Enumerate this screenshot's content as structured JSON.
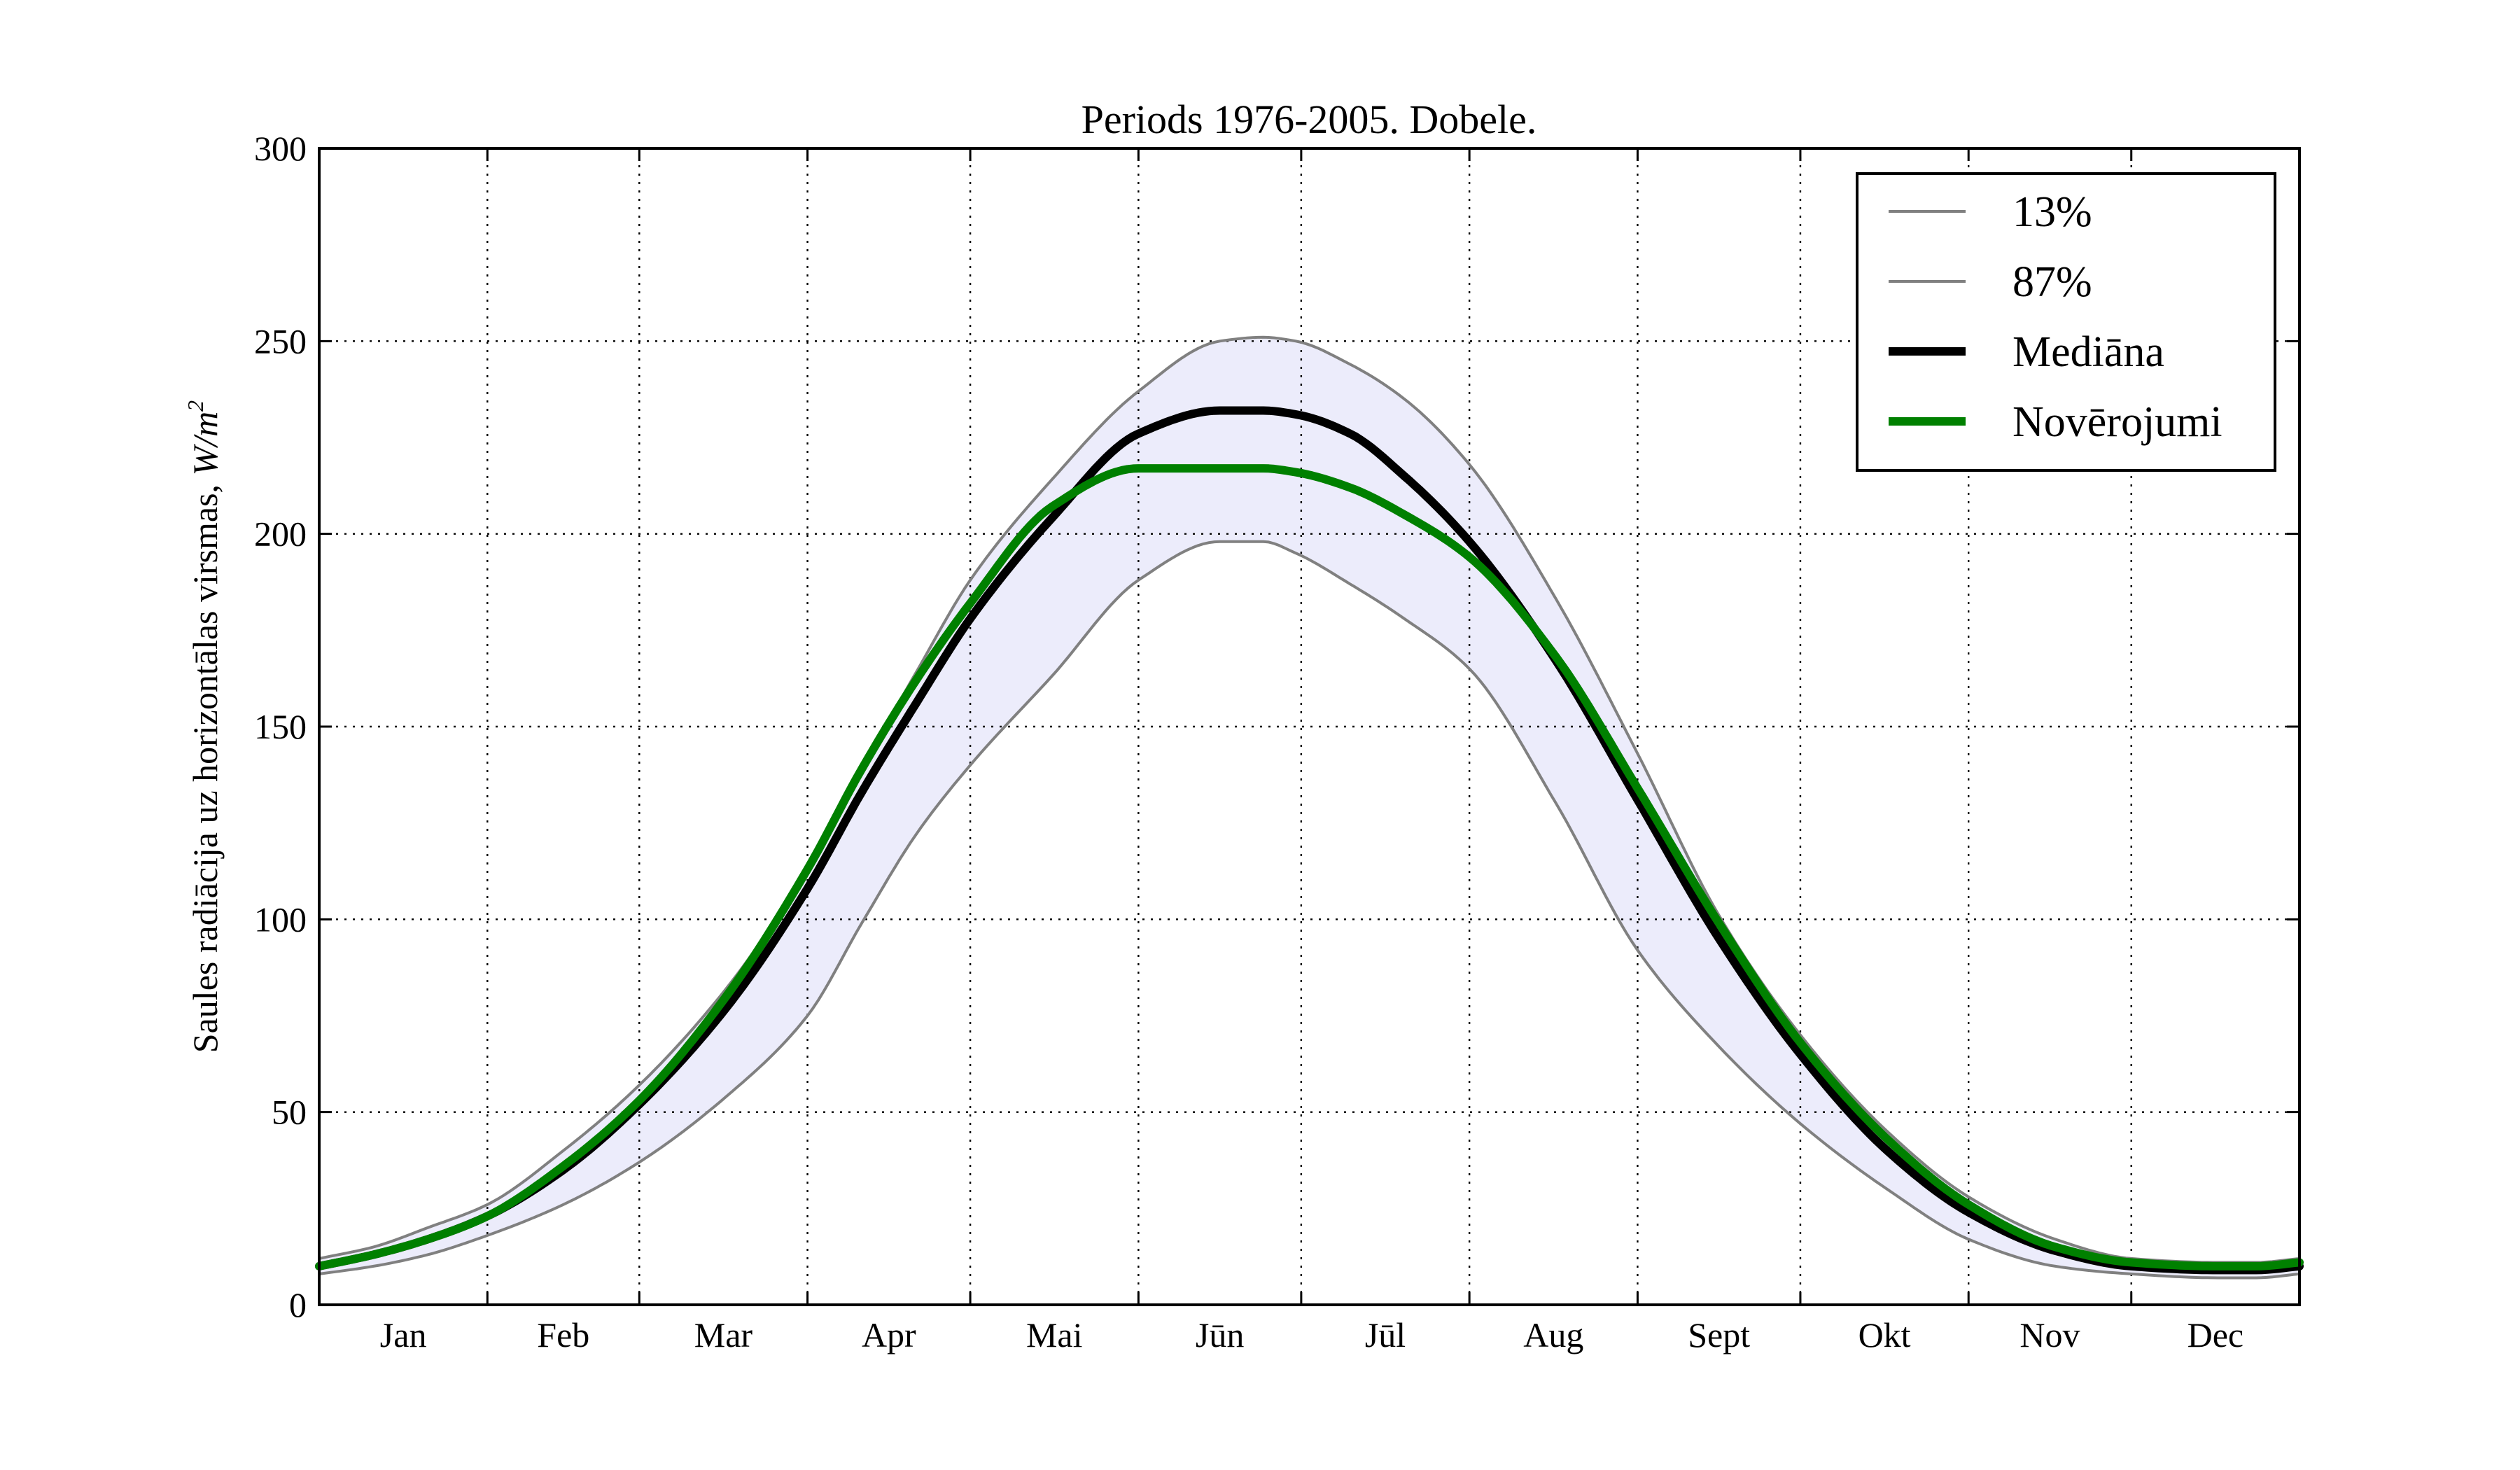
{
  "chart_data": {
    "type": "line",
    "title": "Periods 1976-2005. Dobele.",
    "xlabel": "",
    "ylabel": "Saules radiācija uz horizontālas virsmas, W/m²",
    "ylabel_prefix": "Saules radiācija uz horizontālas virsmas, ",
    "ylabel_unit_main": "W/m",
    "ylabel_unit_sup": "2",
    "ylim": [
      0,
      300
    ],
    "yticks": [
      "0",
      "50",
      "100",
      "150",
      "200",
      "250",
      "300"
    ],
    "ytick_values": [
      0,
      50,
      100,
      150,
      200,
      250,
      300
    ],
    "xlim": [
      0,
      365
    ],
    "month_boundaries": [
      31,
      59,
      90,
      120,
      151,
      181,
      212,
      243,
      273,
      304,
      334
    ],
    "categories": [
      "Jan",
      "Feb",
      "Mar",
      "Apr",
      "Mai",
      "Jūn",
      "Jūl",
      "Aug",
      "Sept",
      "Okt",
      "Nov",
      "Dec"
    ],
    "grid": true,
    "legend_position": "top-right",
    "band_color": "#ececfb",
    "series": [
      {
        "name": "13%",
        "color": "#808080",
        "style": "thin",
        "x": [
          0,
          10,
          20,
          31,
          45,
          59,
          75,
          90,
          100,
          110,
          120,
          135,
          151,
          166,
          174,
          180,
          190,
          200,
          212,
          228,
          243,
          258,
          273,
          289,
          304,
          320,
          334,
          350,
          357,
          365
        ],
        "values": [
          8,
          10,
          13,
          18,
          26,
          37,
          54,
          75,
          99,
          122,
          140,
          163,
          188,
          198,
          198,
          195,
          187,
          178,
          165,
          130,
          92,
          67,
          47,
          30,
          17,
          10,
          8,
          7,
          7,
          8
        ]
      },
      {
        "name": "87%",
        "color": "#808080",
        "style": "thin",
        "x": [
          0,
          10,
          20,
          31,
          45,
          59,
          75,
          90,
          100,
          110,
          120,
          135,
          151,
          166,
          174,
          180,
          190,
          200,
          212,
          228,
          243,
          258,
          273,
          289,
          304,
          320,
          334,
          350,
          357,
          365
        ],
        "values": [
          12,
          15,
          20,
          26,
          40,
          57,
          82,
          113,
          139,
          164,
          188,
          214,
          237,
          250,
          251,
          250,
          244,
          235,
          218,
          183,
          143,
          101,
          70,
          45,
          28,
          17,
          12,
          11,
          11,
          12
        ]
      },
      {
        "name": "Mediāna",
        "color": "#000000",
        "style": "thick",
        "x": [
          0,
          10,
          20,
          31,
          45,
          59,
          75,
          90,
          100,
          110,
          120,
          135,
          151,
          166,
          174,
          180,
          190,
          200,
          212,
          228,
          243,
          258,
          273,
          289,
          304,
          320,
          334,
          350,
          357,
          365
        ],
        "values": [
          10,
          13,
          17,
          23,
          35,
          52,
          77,
          108,
          133,
          156,
          178,
          204,
          226,
          232,
          232,
          231,
          226,
          215,
          198,
          167,
          131,
          95,
          65,
          40,
          24,
          14,
          10,
          9,
          9,
          10
        ]
      },
      {
        "name": "Novērojumi",
        "color": "#008000",
        "style": "thick",
        "x": [
          0,
          10,
          20,
          31,
          45,
          59,
          75,
          90,
          100,
          110,
          120,
          135,
          151,
          166,
          174,
          180,
          190,
          200,
          212,
          228,
          243,
          258,
          273,
          289,
          304,
          320,
          334,
          350,
          357,
          365
        ],
        "values": [
          10,
          13,
          17,
          23,
          36,
          53,
          80,
          113,
          139,
          162,
          182,
          207,
          217,
          217,
          217,
          216,
          212,
          205,
          194,
          168,
          134,
          99,
          68,
          43,
          26,
          15,
          11,
          10,
          10,
          11
        ]
      }
    ]
  }
}
